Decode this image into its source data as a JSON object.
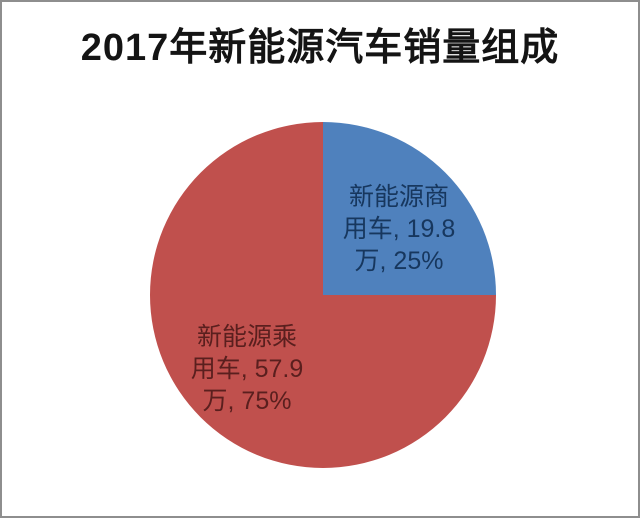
{
  "chart_data": {
    "type": "pie",
    "title": "2017年新能源汽车销量组成",
    "start_angle_deg": 0,
    "direction": "clockwise",
    "legend": "none",
    "slices": [
      {
        "name": "新能源商用车",
        "value": 19.8,
        "value_unit": "万",
        "percent": 25,
        "color": "#4f81bd",
        "label_text": "新能源商用车, 19.8万, 25%",
        "label_lines": [
          "新能源商",
          "用车, 19.8",
          "万, 25%"
        ],
        "label_color": "#17375e"
      },
      {
        "name": "新能源乘用车",
        "value": 57.9,
        "value_unit": "万",
        "percent": 75,
        "color": "#c0504d",
        "label_text": "新能源乘用车, 57.9万, 75%",
        "label_lines": [
          "新能源乘",
          "用车, 57.9",
          "万, 75%"
        ],
        "label_color": "#5a1f1e"
      }
    ]
  }
}
